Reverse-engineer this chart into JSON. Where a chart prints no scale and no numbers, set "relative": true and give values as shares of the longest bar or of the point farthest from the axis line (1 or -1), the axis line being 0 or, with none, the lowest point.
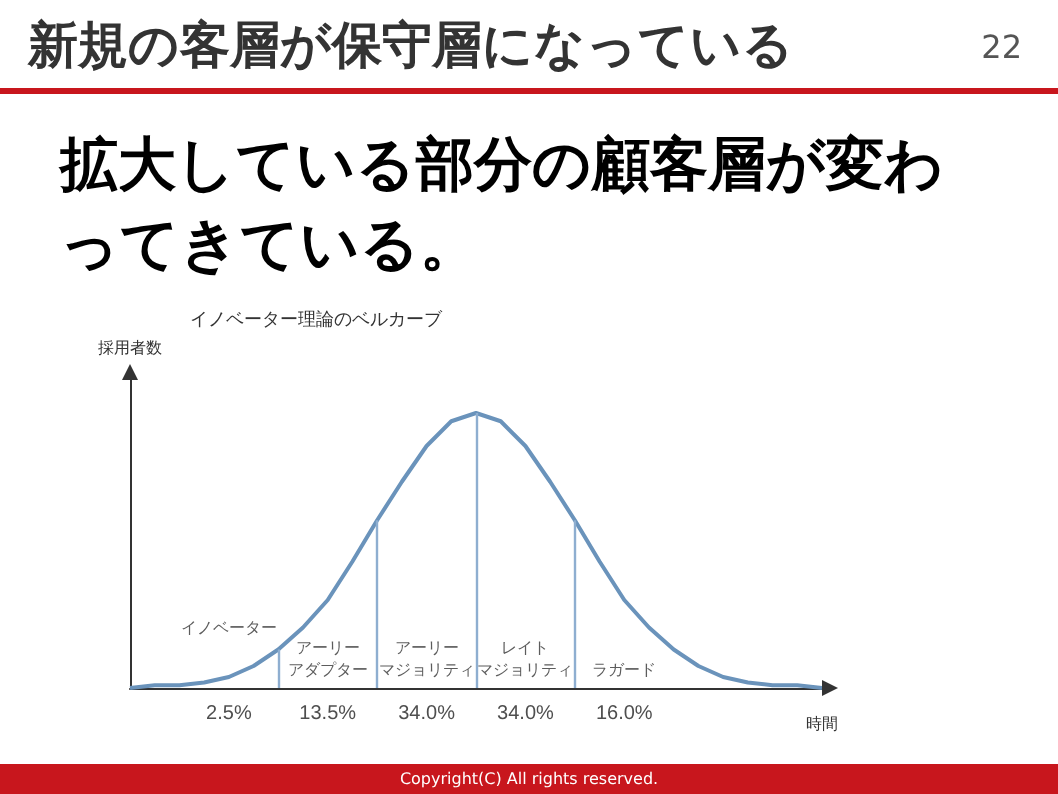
{
  "chart_data": {
    "type": "line",
    "title": "イノベーター理論のベルカーブ",
    "subtitle": "拡大している部分の顧客層が変わってきている。",
    "xlabel": "時間",
    "ylabel": "採用者数",
    "relative": true,
    "marker": "none",
    "line_style": "solid",
    "categories": [
      null,
      null,
      null,
      null,
      null,
      null,
      null,
      null,
      null,
      null,
      null,
      null,
      null,
      null,
      null,
      null,
      null,
      null,
      null,
      null,
      null,
      null,
      null,
      null,
      null,
      null,
      null,
      null,
      null
    ],
    "series": [
      {
        "color": "#6a93bb",
        "values": [
          0.0,
          0.01,
          0.01,
          0.02,
          0.04,
          0.08,
          0.14,
          0.22,
          0.32,
          0.46,
          0.61,
          0.75,
          0.88,
          0.97,
          1,
          0.97,
          0.88,
          0.75,
          0.61,
          0.46,
          0.32,
          0.22,
          0.14,
          0.08,
          0.04,
          0.02,
          0.01,
          0.01,
          0.0
        ]
      }
    ],
    "annotations": [
      "新規の客層が保守層になっている",
      "22",
      "Copyright(C) All rights reserved.",
      "イノベーター",
      "アーリー",
      "アダプター",
      "アーリー",
      "マジョリティ",
      "レイト",
      "マジョリティ",
      "ラガード",
      "2.5%",
      "13.5%",
      "34.0%",
      "34.0%",
      "16.0%"
    ]
  }
}
